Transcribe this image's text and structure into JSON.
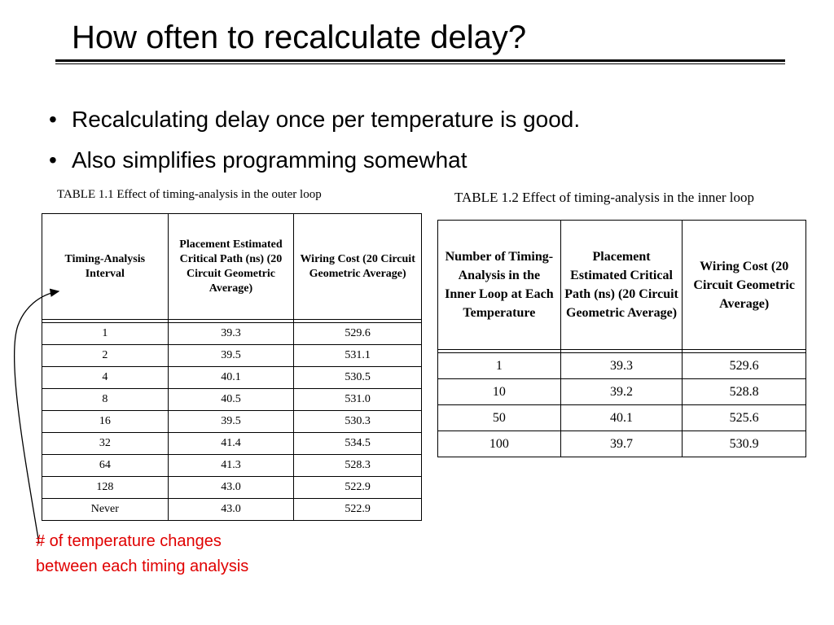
{
  "title": "How often to recalculate delay?",
  "bullets": [
    "Recalculating delay once per temperature is good.",
    "Also simplifies programming somewhat"
  ],
  "table1": {
    "caption": "TABLE 1.1  Effect of timing-analysis in the outer loop",
    "headers": [
      "Timing-Analysis Interval",
      "Placement Estimated Critical Path (ns) (20 Circuit Geometric Average)",
      "Wiring Cost (20 Circuit Geometric Average)"
    ],
    "rows": [
      [
        "1",
        "39.3",
        "529.6"
      ],
      [
        "2",
        "39.5",
        "531.1"
      ],
      [
        "4",
        "40.1",
        "530.5"
      ],
      [
        "8",
        "40.5",
        "531.0"
      ],
      [
        "16",
        "39.5",
        "530.3"
      ],
      [
        "32",
        "41.4",
        "534.5"
      ],
      [
        "64",
        "41.3",
        "528.3"
      ],
      [
        "128",
        "43.0",
        "522.9"
      ],
      [
        "Never",
        "43.0",
        "522.9"
      ]
    ]
  },
  "table2": {
    "caption": "TABLE 1.2  Effect of timing-analysis in the inner loop",
    "headers": [
      "Number of Timing-Analysis in the Inner Loop at Each Temperature",
      "Placement Estimated Critical Path (ns) (20 Circuit Geometric Average)",
      "Wiring Cost (20 Circuit Geometric Average)"
    ],
    "rows": [
      [
        "1",
        "39.3",
        "529.6"
      ],
      [
        "10",
        "39.2",
        "528.8"
      ],
      [
        "50",
        "40.1",
        "525.6"
      ],
      [
        "100",
        "39.7",
        "530.9"
      ]
    ]
  },
  "annotation": "# of temperature changes between each timing analysis",
  "colors": {
    "annotation": "#e00000"
  }
}
